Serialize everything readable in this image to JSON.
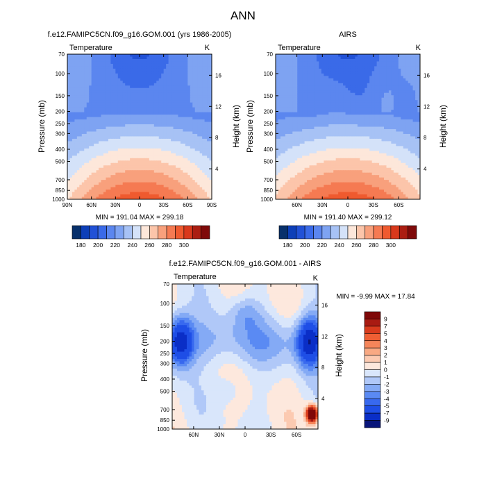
{
  "page_title": "ANN",
  "colormaps": {
    "abs": [
      "#08306b",
      "#0d3fb8",
      "#2151d6",
      "#3a6ae8",
      "#5b86ef",
      "#7ea3f2",
      "#a7c2f5",
      "#d4e2f9",
      "#fde7da",
      "#fcc5aa",
      "#f8a07c",
      "#f57a52",
      "#ef5a2f",
      "#d9391c",
      "#ab1e12",
      "#7f0a0a"
    ],
    "diff": [
      "#08157a",
      "#0a2ec7",
      "#1e4ee6",
      "#3869ef",
      "#5a8af3",
      "#84aaf5",
      "#b0c8f8",
      "#d9e6fb",
      "#fde8dd",
      "#fccab1",
      "#f9a983",
      "#f5855a",
      "#ef5f34",
      "#d93b1d",
      "#a91b12",
      "#7f0808"
    ]
  },
  "chart_data": [
    {
      "type": "contour",
      "title": "f.e12.FAMIPC5CN.f09_g16.GOM.001 (yrs 1986-2005)",
      "left_label": "Temperature",
      "right_label": "K",
      "ylabel": "Pressure (mb)",
      "y2label": "Height (km)",
      "y_ticks": [
        "70",
        "100",
        "150",
        "200",
        "250",
        "300",
        "400",
        "500",
        "700",
        "850",
        "1000"
      ],
      "y2_ticks": [
        "16",
        "12",
        "8",
        "4"
      ],
      "x_ticks": [
        "90N",
        "60N",
        "30N",
        "0",
        "30S",
        "60S",
        "90S"
      ],
      "stats": "MIN = 191.04   MAX = 299.18",
      "colorbar_labels": [
        "180",
        "190",
        "200",
        "210",
        "220",
        "230",
        "240",
        "250",
        "260",
        "270",
        "280",
        "290",
        "300"
      ],
      "field": {
        "kind": "temperature",
        "min": 191.04,
        "max": 299.18,
        "step": 10,
        "start": 180
      }
    },
    {
      "type": "contour",
      "title": "AIRS",
      "left_label": "Temperature",
      "right_label": "K",
      "ylabel": "Pressure (mb)",
      "y2label": "Height (km)",
      "y_ticks": [
        "70",
        "100",
        "150",
        "200",
        "250",
        "300",
        "400",
        "500",
        "700",
        "850",
        "1000"
      ],
      "y2_ticks": [
        "16",
        "12",
        "8",
        "4"
      ],
      "x_ticks": [
        "60N",
        "30N",
        "0",
        "30S",
        "60S"
      ],
      "stats": "MIN = 191.40   MAX = 299.12",
      "colorbar_labels": [
        "180",
        "190",
        "200",
        "210",
        "220",
        "230",
        "240",
        "250",
        "260",
        "270",
        "280",
        "290",
        "300"
      ],
      "field": {
        "kind": "temperature",
        "min": 191.4,
        "max": 299.12,
        "step": 10,
        "start": 180
      }
    },
    {
      "type": "contour",
      "title": "f.e12.FAMIPC5CN.f09_g16.GOM.001 - AIRS",
      "left_label": "Temperature",
      "right_label": "K",
      "ylabel": "Pressure (mb)",
      "y2label": "Height (km)",
      "y_ticks": [
        "70",
        "100",
        "150",
        "200",
        "250",
        "300",
        "400",
        "500",
        "700",
        "850",
        "1000"
      ],
      "y2_ticks": [
        "16",
        "12",
        "8",
        "4"
      ],
      "x_ticks": [
        "60N",
        "30N",
        "0",
        "30S",
        "60S"
      ],
      "stats": "MIN =  -9.99   MAX =  17.84",
      "colorbar_labels": [
        "9",
        "7",
        "5",
        "4",
        "3",
        "2",
        "1",
        "0",
        "-1",
        "-2",
        "-3",
        "-4",
        "-5",
        "-7",
        "-9"
      ],
      "field": {
        "kind": "difference",
        "min": -9.99,
        "max": 17.84
      }
    }
  ]
}
